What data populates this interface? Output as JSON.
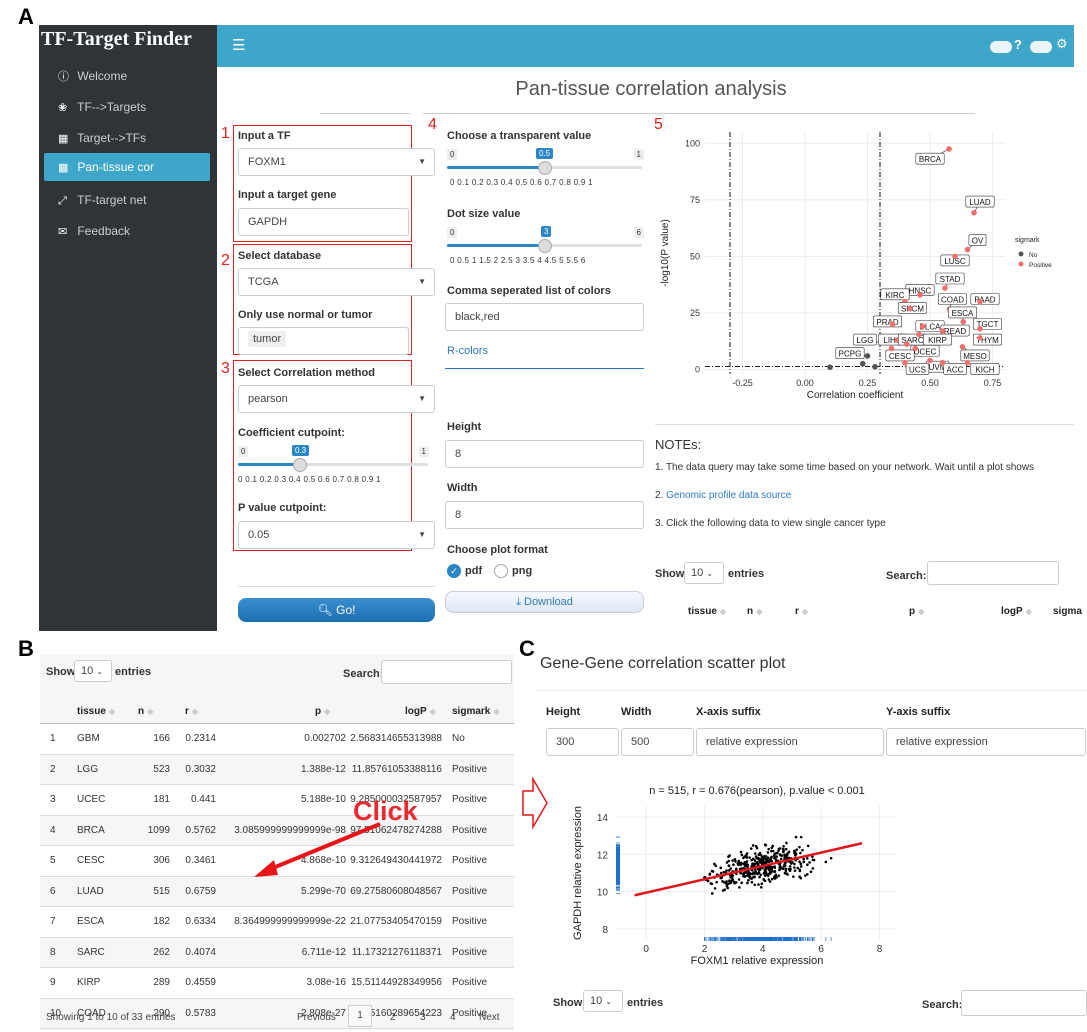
{
  "panel_labels": {
    "a": "A",
    "b": "B",
    "c": "C"
  },
  "app": {
    "title": "TF-Target Finder",
    "nav": [
      {
        "label": "Welcome",
        "icon": "info-circle-icon"
      },
      {
        "label": "TF-->Targets",
        "icon": "palette-icon"
      },
      {
        "label": "Target-->TFs",
        "icon": "table-icon"
      },
      {
        "label": "Pan-tissue cor",
        "icon": "bar-chart-icon"
      },
      {
        "label": "TF-target net",
        "icon": "expand-icon"
      },
      {
        "label": "Feedback",
        "icon": "envelope-icon"
      }
    ],
    "topbar_help": "?"
  },
  "page_title": "Pan-tissue correlation analysis",
  "box_numbers": [
    "1",
    "2",
    "3",
    "4",
    "5"
  ],
  "form": {
    "tf_label": "Input a TF",
    "tf_value": "FOXM1",
    "target_label": "Input a target gene",
    "target_value": "GAPDH",
    "db_label": "Select database",
    "db_value": "TCGA",
    "normal_label": "Only use normal or tumor",
    "normal_value": "tumor",
    "method_label": "Select Correlation method",
    "method_value": "pearson",
    "coef_label": "Coefficient cutpoint:",
    "coef_min": "0",
    "coef_max": "1",
    "coef_value": "0.3",
    "coef_ticks": "0   0.1  0.2  0.3  0.4  0.5  0.6  0.7  0.8  0.9  1",
    "p_label": "P value cutpoint:",
    "p_value": "0.05",
    "go_label": "Go!"
  },
  "options": {
    "transp_label": "Choose a transparent value",
    "transp_min": "0",
    "transp_max": "1",
    "transp_value": "0.5",
    "transp_ticks": "0   0.1  0.2  0.3  0.4  0.5  0.6  0.7  0.8  0.9  1",
    "dot_label": "Dot size value",
    "dot_min": "0",
    "dot_max": "6",
    "dot_value": "3",
    "dot_ticks": "0  0.5  1  1.5  2  2.5  3  3.5  4  4.5  5  5.5  6",
    "colors_label": "Comma seperated list of colors",
    "colors_value": "black,red",
    "rcolors": "R-colors",
    "height_label": "Height",
    "height_value": "8",
    "width_label": "Width",
    "width_value": "8",
    "format_label": "Choose plot format",
    "fmt_pdf": "pdf",
    "fmt_png": "png",
    "download_label": "Download"
  },
  "notes": {
    "title": "NOTEs:",
    "n1": "1. The data query may take some time based on your network. Wait until a plot shows",
    "n2_prefix": "2. ",
    "n2_link": "Genomic profile data source",
    "n3": "3. Click the following data to view single cancer type"
  },
  "table_a": {
    "show": "Show",
    "entries_value": "10",
    "entries": "entries",
    "search": "Search:",
    "headers": [
      "tissue",
      "n",
      "r",
      "p",
      "logP",
      "sigma"
    ]
  },
  "table_b": {
    "show": "Show",
    "entries_value": "10",
    "entries": "entries",
    "search": "Search:",
    "headers": [
      "tissue",
      "n",
      "r",
      "p",
      "logP",
      "sigmark"
    ],
    "rows": [
      [
        "1",
        "GBM",
        "166",
        "0.2314",
        "0.002702",
        "2.568314655313988",
        "No"
      ],
      [
        "2",
        "LGG",
        "523",
        "0.3032",
        "1.388e-12",
        "11.85761053388116",
        "Positive"
      ],
      [
        "3",
        "UCEC",
        "181",
        "0.441",
        "5.188e-10",
        "9.285000032587957",
        "Positive"
      ],
      [
        "4",
        "BRCA",
        "1099",
        "0.5762",
        "3.085999999999999e-98",
        "97.51062478274288",
        "Positive"
      ],
      [
        "5",
        "CESC",
        "306",
        "0.3461",
        "4.868e-10",
        "9.312649430441972",
        "Positive"
      ],
      [
        "6",
        "LUAD",
        "515",
        "0.6759",
        "5.299e-70",
        "69.27580608048567",
        "Positive"
      ],
      [
        "7",
        "ESCA",
        "182",
        "0.6334",
        "8.364999999999999e-22",
        "21.07753405470159",
        "Positive"
      ],
      [
        "8",
        "SARC",
        "262",
        "0.4074",
        "6.711e-12",
        "11.17321276118371",
        "Positive"
      ],
      [
        "9",
        "KIRP",
        "289",
        "0.4559",
        "3.08e-16",
        "15.51144928349956",
        "Positive"
      ],
      [
        "10",
        "COAD",
        "290",
        "0.5783",
        "2.808e-27",
        "26.55160289654223",
        "Positive"
      ]
    ],
    "info": "Showing 1 to 10 of 33 entries",
    "pages": [
      "Previous",
      "1",
      "2",
      "3",
      "4",
      "Next"
    ],
    "click": "Click"
  },
  "panel_c": {
    "title": "Gene-Gene correlation scatter plot",
    "headers": [
      "Height",
      "Width",
      "X-axis suffix",
      "Y-axis suffix"
    ],
    "values": [
      "300",
      "500",
      "relative expression",
      "relative expression"
    ],
    "show": "Show",
    "entries_value": "10",
    "entries": "entries",
    "search": "Search:"
  },
  "chart_data": [
    {
      "type": "scatter",
      "title": "",
      "xlabel": "Correlation coefficient",
      "ylabel": "-log10(P value)",
      "xlim": [
        -0.4,
        0.8
      ],
      "ylim": [
        -2,
        105
      ],
      "xticks": [
        "-0.25",
        "0.00",
        "0.25",
        "0.50",
        "0.75"
      ],
      "yticks": [
        "0",
        "25",
        "50",
        "75",
        "100"
      ],
      "legend_title": "sigmark",
      "legend": [
        {
          "name": "No",
          "color": "#555555"
        },
        {
          "name": "Positive",
          "color": "#f07070"
        }
      ],
      "cutoff_lines_x": [
        -0.3,
        0.3
      ],
      "cutoff_line_y": 1.3,
      "points": [
        {
          "label": "BRCA",
          "x": 0.576,
          "y": 97.5,
          "s": "Positive",
          "lx": 0.5,
          "ly": 93
        },
        {
          "label": "LUAD",
          "x": 0.676,
          "y": 69.3,
          "s": "Positive",
          "lx": 0.7,
          "ly": 74
        },
        {
          "label": "OV",
          "x": 0.65,
          "y": 53,
          "s": "Positive",
          "lx": 0.69,
          "ly": 57
        },
        {
          "label": "LUSC",
          "x": 0.6,
          "y": 50,
          "s": "Positive",
          "lx": 0.6,
          "ly": 48
        },
        {
          "label": "STAD",
          "x": 0.56,
          "y": 36,
          "s": "Positive",
          "lx": 0.58,
          "ly": 40
        },
        {
          "label": "HNSC",
          "x": 0.46,
          "y": 33,
          "s": "Positive",
          "lx": 0.46,
          "ly": 35
        },
        {
          "label": "KIRC",
          "x": 0.4,
          "y": 30,
          "s": "Positive",
          "lx": 0.36,
          "ly": 33
        },
        {
          "label": "COAD",
          "x": 0.578,
          "y": 26.6,
          "s": "Positive",
          "lx": 0.59,
          "ly": 31
        },
        {
          "label": "PAAD",
          "x": 0.7,
          "y": 30,
          "s": "Positive",
          "lx": 0.72,
          "ly": 31
        },
        {
          "label": "SKCM",
          "x": 0.42,
          "y": 27,
          "s": "Positive",
          "lx": 0.43,
          "ly": 27
        },
        {
          "label": "ESCA",
          "x": 0.633,
          "y": 21.1,
          "s": "Positive",
          "lx": 0.63,
          "ly": 25
        },
        {
          "label": "TGCT",
          "x": 0.7,
          "y": 18,
          "s": "Positive",
          "lx": 0.73,
          "ly": 20
        },
        {
          "label": "PRAD",
          "x": 0.35,
          "y": 20,
          "s": "Positive",
          "lx": 0.33,
          "ly": 21
        },
        {
          "label": "BLCA",
          "x": 0.47,
          "y": 19,
          "s": "Positive",
          "lx": 0.5,
          "ly": 19
        },
        {
          "label": "READ",
          "x": 0.55,
          "y": 17,
          "s": "Positive",
          "lx": 0.6,
          "ly": 17
        },
        {
          "label": "LGG",
          "x": 0.303,
          "y": 11.9,
          "s": "Positive",
          "lx": 0.24,
          "ly": 13
        },
        {
          "label": "LIHC",
          "x": 0.37,
          "y": 13,
          "s": "Positive",
          "lx": 0.35,
          "ly": 13
        },
        {
          "label": "SARC",
          "x": 0.407,
          "y": 11.2,
          "s": "Positive",
          "lx": 0.43,
          "ly": 13
        },
        {
          "label": "KIRP",
          "x": 0.456,
          "y": 15.5,
          "s": "Positive",
          "lx": 0.53,
          "ly": 13
        },
        {
          "label": "THYM",
          "x": 0.7,
          "y": 14,
          "s": "Positive",
          "lx": 0.73,
          "ly": 13
        },
        {
          "label": "UCEC",
          "x": 0.441,
          "y": 9.3,
          "s": "Positive",
          "lx": 0.48,
          "ly": 8
        },
        {
          "label": "PCPG",
          "x": 0.25,
          "y": 6,
          "s": "No",
          "lx": 0.18,
          "ly": 7
        },
        {
          "label": "CESC",
          "x": 0.346,
          "y": 9.3,
          "s": "Positive",
          "lx": 0.38,
          "ly": 6
        },
        {
          "label": "MESO",
          "x": 0.63,
          "y": 10,
          "s": "Positive",
          "lx": 0.68,
          "ly": 6
        },
        {
          "label": "UVM",
          "x": 0.5,
          "y": 4,
          "s": "Positive",
          "lx": 0.53,
          "ly": 1
        },
        {
          "label": "UCS",
          "x": 0.4,
          "y": 3,
          "s": "Positive",
          "lx": 0.45,
          "ly": 0
        },
        {
          "label": "ACC",
          "x": 0.55,
          "y": 3,
          "s": "Positive",
          "lx": 0.6,
          "ly": 0
        },
        {
          "label": "KICH",
          "x": 0.65,
          "y": 3,
          "s": "Positive",
          "lx": 0.72,
          "ly": 0
        },
        {
          "label": "GBM",
          "x": 0.231,
          "y": 2.57,
          "s": "No",
          "lx": null,
          "ly": null
        },
        {
          "label": "",
          "x": 0.1,
          "y": 1,
          "s": "No",
          "lx": null,
          "ly": null
        },
        {
          "label": "",
          "x": 0.28,
          "y": 1.2,
          "s": "No",
          "lx": null,
          "ly": null
        }
      ]
    },
    {
      "type": "scatter",
      "title": "n = 515, r = 0.676(pearson), p.value < 0.001",
      "xlabel": "FOXM1 relative expression",
      "ylabel": "GAPDH relative expression",
      "xlim": [
        -1,
        8.6
      ],
      "ylim": [
        7.4,
        14.6
      ],
      "xticks": [
        "0",
        "2",
        "4",
        "6",
        "8"
      ],
      "yticks": [
        "8",
        "10",
        "12",
        "14"
      ],
      "fit": {
        "x": [
          -0.4,
          7.4
        ],
        "y": [
          9.8,
          12.6
        ]
      },
      "n": 515,
      "point_color": "#000000",
      "line_color": "#e0161b"
    }
  ]
}
